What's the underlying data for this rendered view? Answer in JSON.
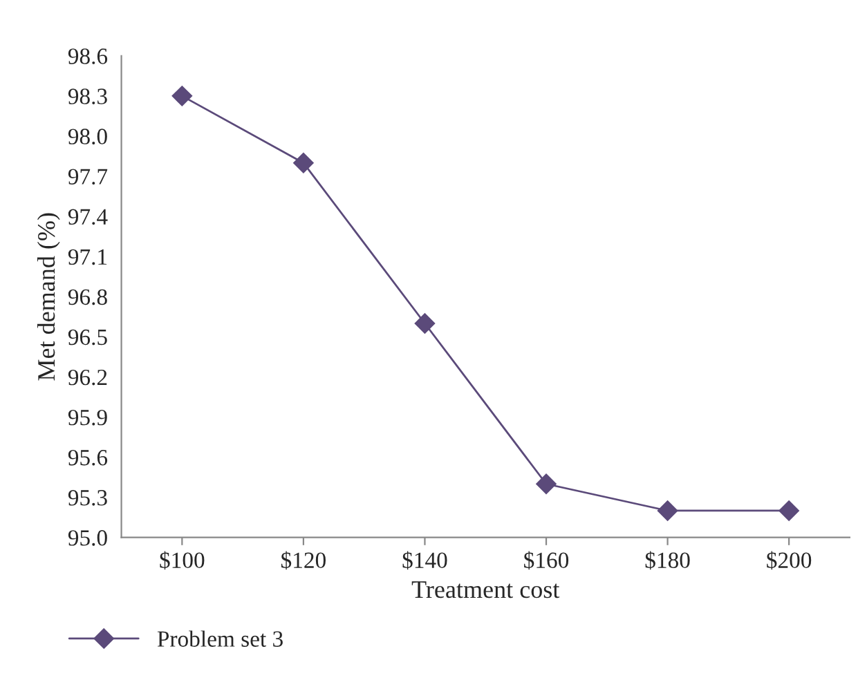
{
  "chart_data": {
    "type": "line",
    "xlabel": "Treatment cost",
    "ylabel": "Met demand (%)",
    "categories": [
      "$100",
      "$120",
      "$140",
      "$160",
      "$180",
      "$200"
    ],
    "series": [
      {
        "name": "Problem set 3",
        "color": "#5b4a7a",
        "values": [
          98.3,
          97.8,
          96.6,
          95.4,
          95.2,
          95.2
        ]
      }
    ],
    "ylim": [
      95.0,
      98.6
    ],
    "yticks": [
      {
        "value": 95,
        "label": "95.0"
      },
      95.3,
      95.6,
      95.9,
      96.2,
      96.5,
      96.8,
      97.1,
      97.4,
      97.7,
      {
        "value": 98,
        "label": "98.0"
      },
      98.3,
      98.6
    ],
    "marker": "diamond",
    "line_style": "solid",
    "legend": "bottom left",
    "grid": false
  }
}
